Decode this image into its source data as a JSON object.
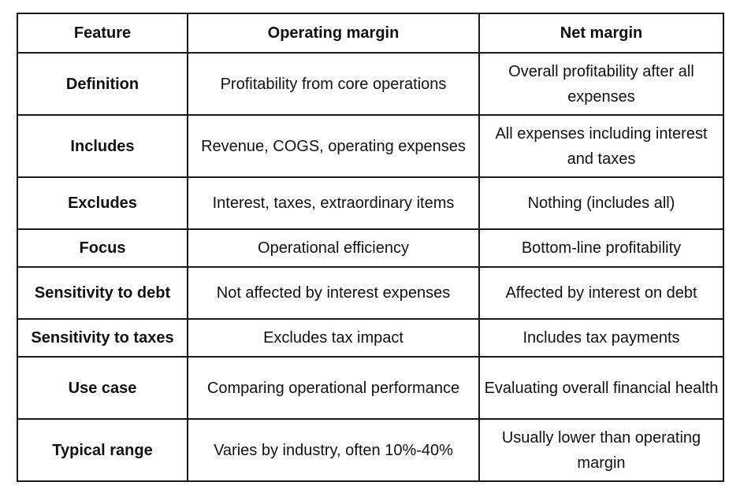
{
  "table": {
    "headers": [
      "Feature",
      "Operating margin",
      "Net margin"
    ],
    "rows": [
      {
        "feature": "Definition",
        "operating": "Profitability from core operations",
        "net": "Overall profitability after all expenses"
      },
      {
        "feature": "Includes",
        "operating": "Revenue, COGS, operating expenses",
        "net": "All expenses including interest and taxes"
      },
      {
        "feature": "Excludes",
        "operating": "Interest, taxes, extraordinary items",
        "net": "Nothing (includes all)"
      },
      {
        "feature": "Focus",
        "operating": "Operational efficiency",
        "net": "Bottom-line profitability"
      },
      {
        "feature": "Sensitivity to debt",
        "operating": "Not affected by interest expenses",
        "net": "Affected by interest on debt"
      },
      {
        "feature": "Sensitivity to taxes",
        "operating": "Excludes tax impact",
        "net": "Includes tax payments"
      },
      {
        "feature": "Use case",
        "operating": "Comparing operational performance",
        "net": "Evaluating overall financial health"
      },
      {
        "feature": "Typical range",
        "operating": "Varies by industry, often 10%-40%",
        "net": "Usually lower than operating margin"
      }
    ]
  }
}
